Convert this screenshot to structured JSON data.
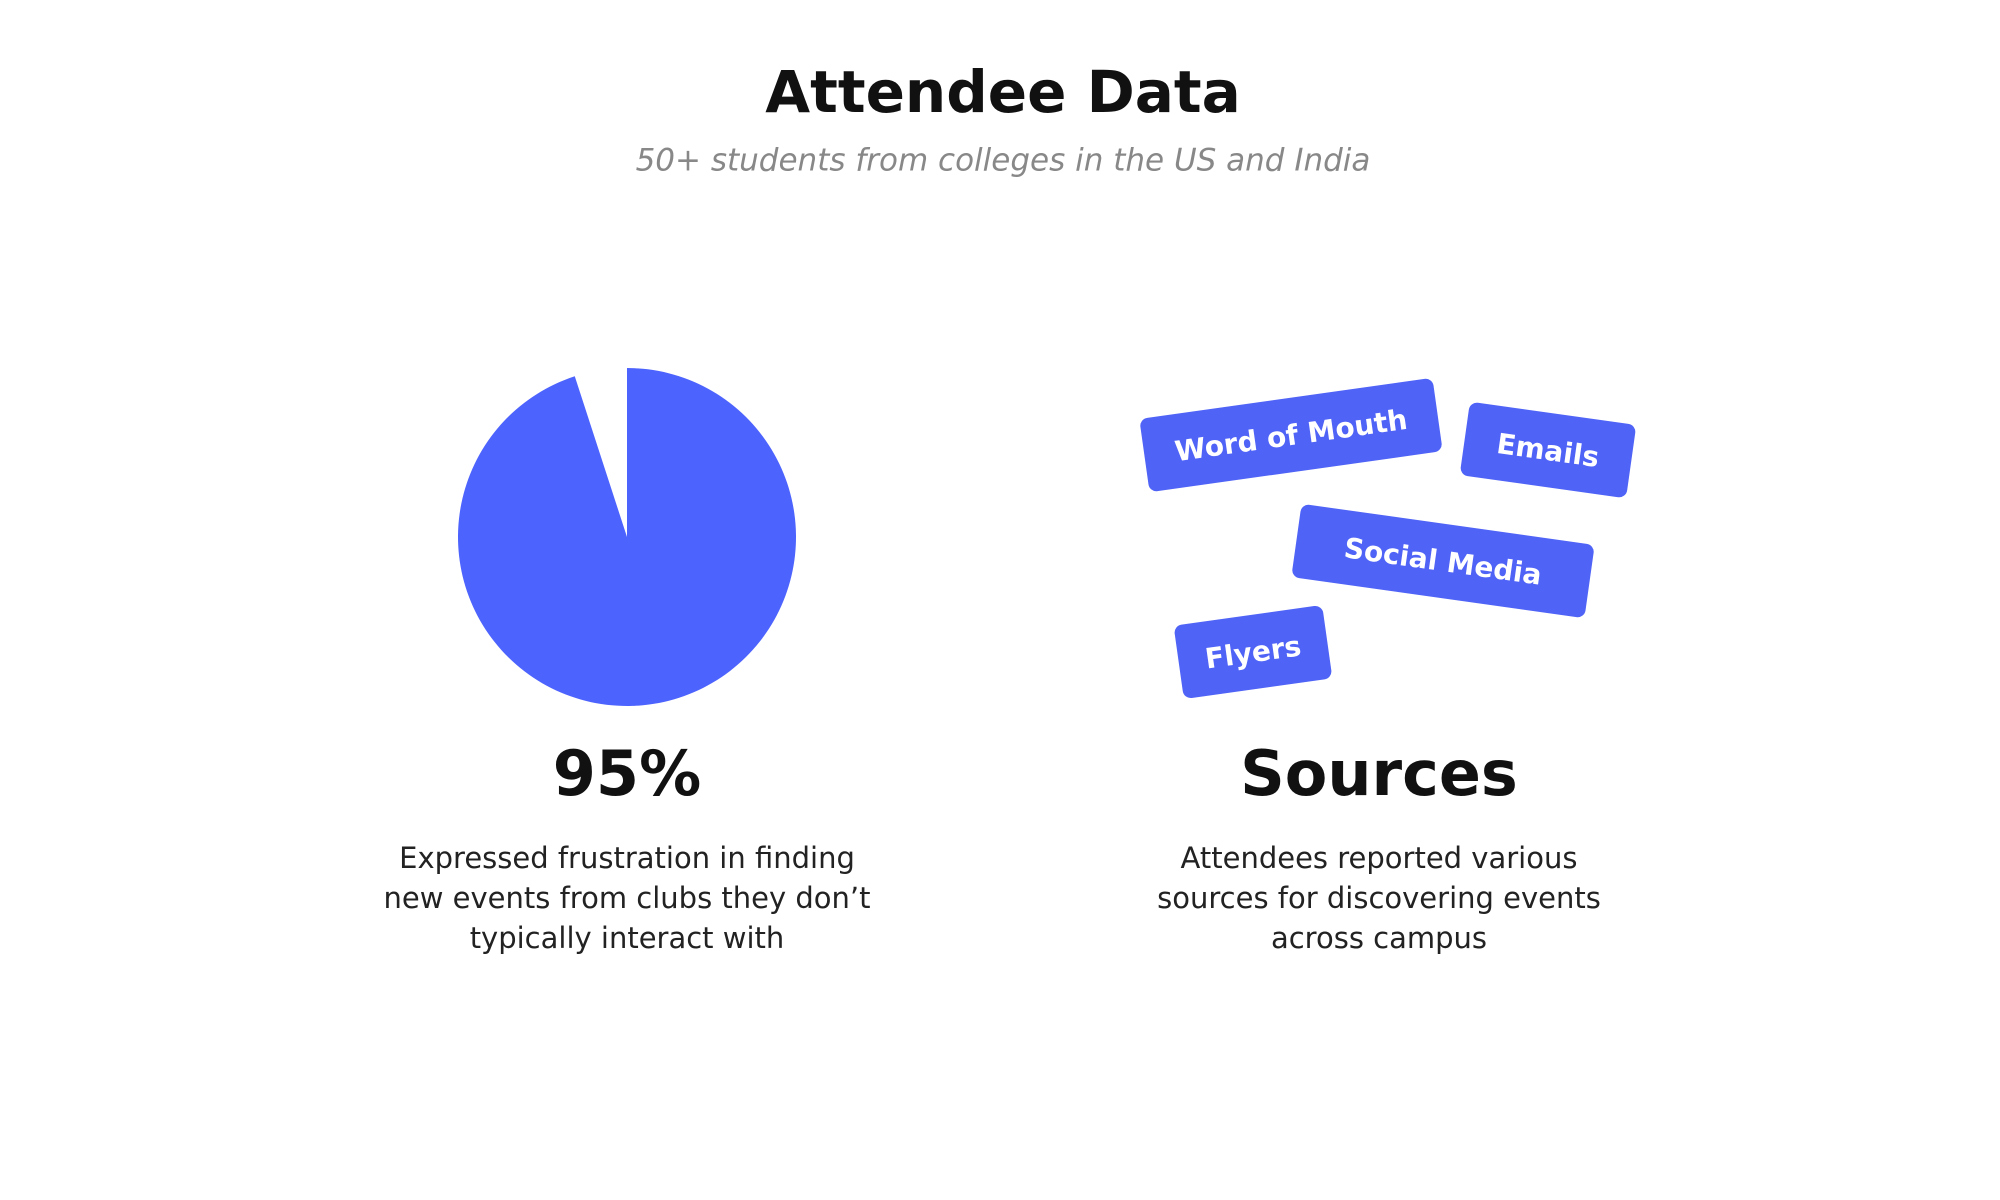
{
  "header": {
    "title": "Attendee Data",
    "subtitle": "50+ students from colleges in the US and India"
  },
  "stat": {
    "value": 95,
    "label": "95%",
    "description": [
      "Expressed frustration in finding",
      "new events from clubs they don’t",
      "typically interact with"
    ],
    "color": "#4d63fe"
  },
  "sources": {
    "heading": "Sources",
    "tags": [
      "Word of Mouth",
      "Emails",
      "Social Media",
      "Flyers"
    ],
    "description": [
      "Attendees reported various",
      "sources for discovering events",
      "across campus"
    ],
    "color": "#4f63f7"
  }
}
